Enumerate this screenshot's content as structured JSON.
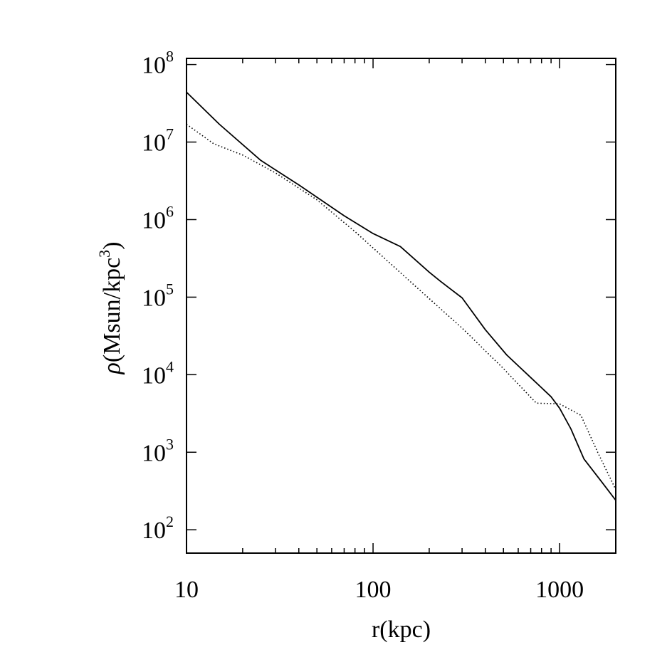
{
  "chart_data": {
    "type": "line",
    "xlabel": "r(kpc)",
    "ylabel": {
      "symbol": "ρ",
      "text_before_sup": "(Msun/kpc",
      "sup": "3",
      "text_after_sup": ")"
    },
    "xscale": "log",
    "yscale": "log",
    "xlim": [
      10,
      2000
    ],
    "ylim": [
      50,
      120000000
    ],
    "x_ticks": [
      {
        "value": 10,
        "label": "10"
      },
      {
        "value": 100,
        "label": "100"
      },
      {
        "value": 1000,
        "label": "1000"
      }
    ],
    "y_ticks": [
      {
        "value": 100,
        "base": "10",
        "exp": "2"
      },
      {
        "value": 1000,
        "base": "10",
        "exp": "3"
      },
      {
        "value": 10000,
        "base": "10",
        "exp": "4"
      },
      {
        "value": 100000,
        "base": "10",
        "exp": "5"
      },
      {
        "value": 1000000,
        "base": "10",
        "exp": "6"
      },
      {
        "value": 10000000,
        "base": "10",
        "exp": "7"
      },
      {
        "value": 100000000,
        "base": "10",
        "exp": "8"
      }
    ],
    "grid": false,
    "series": [
      {
        "style": "solid",
        "color": "#000000",
        "x": [
          10,
          15,
          25,
          40,
          70,
          100,
          140,
          200,
          230,
          300,
          400,
          520,
          600,
          700,
          800,
          900,
          1000,
          1150,
          1350,
          1700,
          2000
        ],
        "y": [
          44000000,
          17000000,
          5800000,
          2800000,
          1120000,
          660000,
          450000,
          210000,
          160000,
          98000,
          38000,
          18000,
          13000,
          9200,
          6800,
          5200,
          3700,
          2000,
          820,
          400,
          240
        ]
      },
      {
        "style": "dotted",
        "color": "#000000",
        "x": [
          10,
          14,
          20,
          30,
          50,
          80,
          120,
          180,
          300,
          500,
          750,
          1000,
          1300,
          1600,
          2000
        ],
        "y": [
          17000000,
          9500000,
          6800000,
          4000000,
          1800000,
          700000,
          290000,
          120000,
          40000,
          12000,
          4300,
          4200,
          3000,
          1000,
          330
        ]
      }
    ]
  }
}
